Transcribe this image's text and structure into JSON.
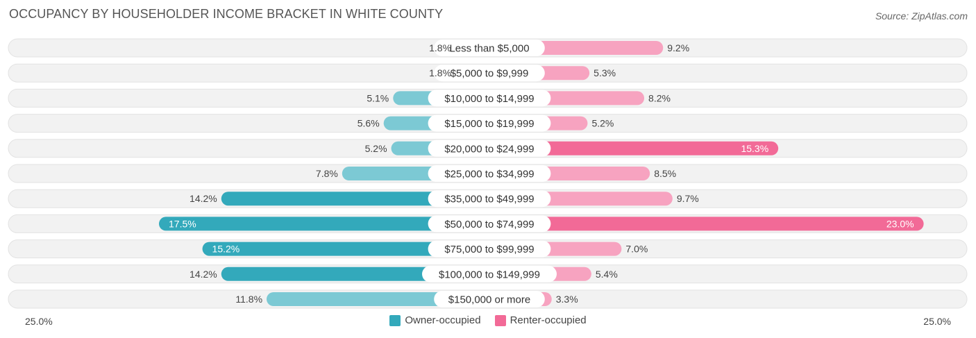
{
  "title": "OCCUPANCY BY HOUSEHOLDER INCOME BRACKET IN WHITE COUNTY",
  "source": "Source: ZipAtlas.com",
  "colors": {
    "owner": "#33a9bb",
    "owner_light": "#7cc9d4",
    "renter": "#f26a97",
    "renter_light": "#f7a3c0",
    "track": "#f1f1f1"
  },
  "chart_data": {
    "type": "bar",
    "orientation": "horizontal-diverging",
    "title": "OCCUPANCY BY HOUSEHOLDER INCOME BRACKET IN WHITE COUNTY",
    "categories": [
      "Less than $5,000",
      "$5,000 to $9,999",
      "$10,000 to $14,999",
      "$15,000 to $19,999",
      "$20,000 to $24,999",
      "$25,000 to $34,999",
      "$35,000 to $49,999",
      "$50,000 to $74,999",
      "$75,000 to $99,999",
      "$100,000 to $149,999",
      "$150,000 or more"
    ],
    "series": [
      {
        "name": "Owner-occupied",
        "values": [
          1.8,
          1.8,
          5.1,
          5.6,
          5.2,
          7.8,
          14.2,
          17.5,
          15.2,
          14.2,
          11.8
        ],
        "labels": [
          "1.8%",
          "1.8%",
          "5.1%",
          "5.6%",
          "5.2%",
          "7.8%",
          "14.2%",
          "17.5%",
          "15.2%",
          "14.2%",
          "11.8%"
        ]
      },
      {
        "name": "Renter-occupied",
        "values": [
          9.2,
          5.3,
          8.2,
          5.2,
          15.3,
          8.5,
          9.7,
          23.0,
          7.0,
          5.4,
          3.3
        ],
        "labels": [
          "9.2%",
          "5.3%",
          "8.2%",
          "5.2%",
          "15.3%",
          "8.5%",
          "9.7%",
          "23.0%",
          "7.0%",
          "5.4%",
          "3.3%"
        ]
      }
    ],
    "xlim": [
      -25,
      25
    ],
    "axis_left_label": "25.0%",
    "axis_right_label": "25.0%",
    "legend_position": "bottom-center"
  }
}
